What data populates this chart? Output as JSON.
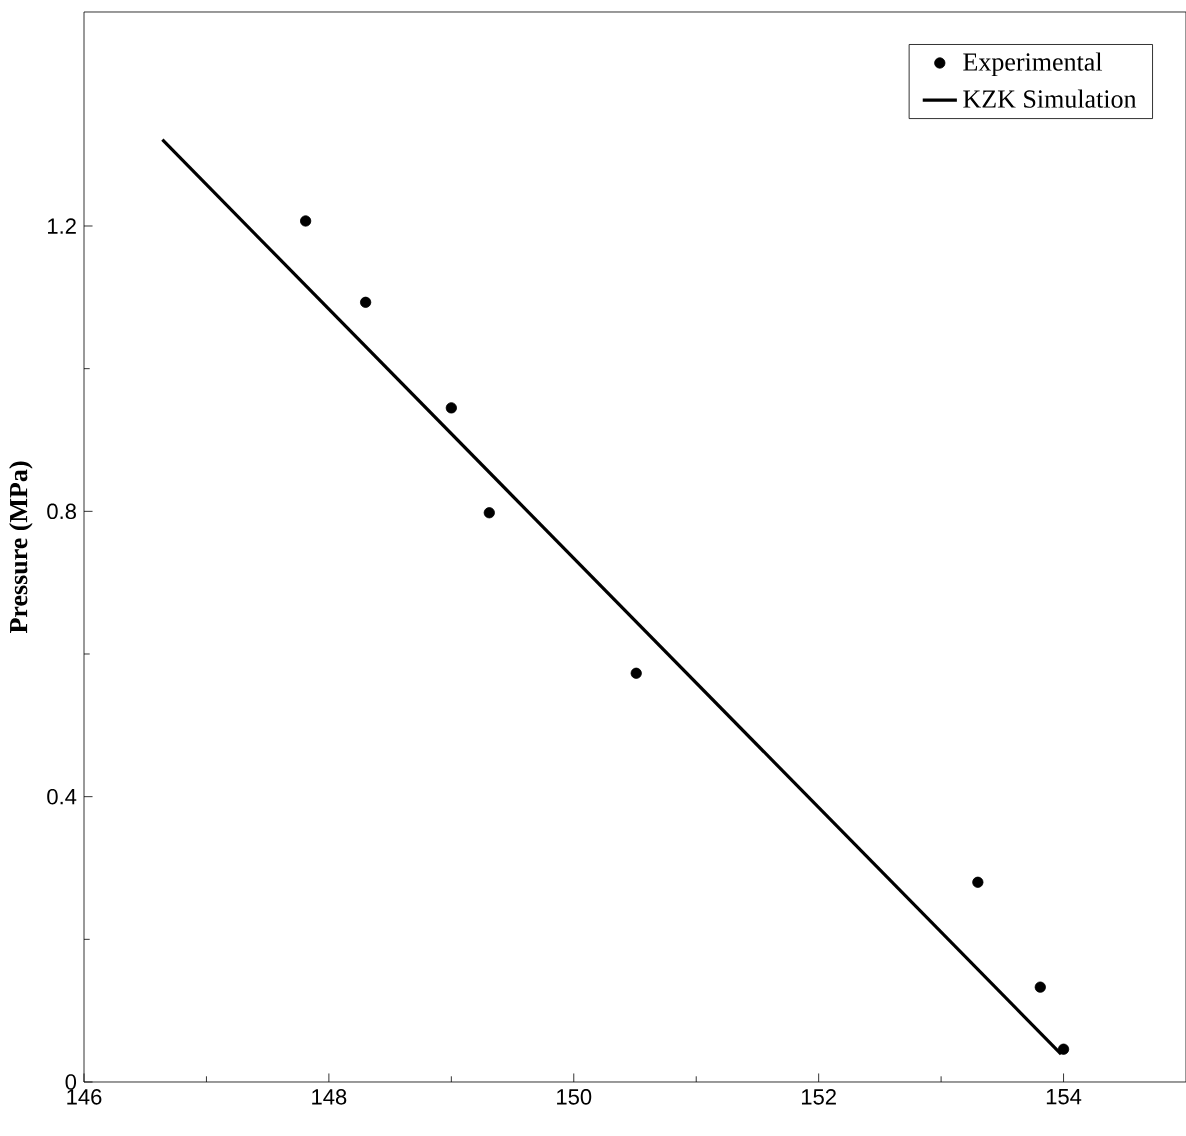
{
  "chart_data": {
    "type": "scatter",
    "ylabel": "Pressure (MPa)",
    "xlim": [
      146,
      155
    ],
    "ylim": [
      0,
      1.5
    ],
    "xticks": [
      146,
      148,
      150,
      152,
      154
    ],
    "yticks": [
      0,
      0.4,
      0.8,
      1.2
    ],
    "legend": "top right",
    "grid": false,
    "series": [
      {
        "name": "Experimental",
        "marker": "circle",
        "color": "#000000",
        "x": [
          147.81,
          148.3,
          149.0,
          149.31,
          150.51,
          153.3,
          153.81,
          154.0
        ],
        "values": [
          1.207,
          1.093,
          0.945,
          0.798,
          0.573,
          0.28,
          0.133,
          0.046
        ]
      },
      {
        "name": "KZK Simulation",
        "type": "line",
        "marker": "none",
        "line_style": "solid",
        "color": "#000000",
        "x": [
          146.64,
          153.98
        ],
        "values": [
          1.321,
          0.039
        ]
      }
    ]
  }
}
